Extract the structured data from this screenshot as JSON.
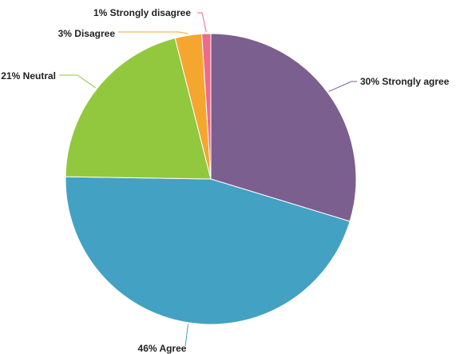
{
  "chart_data": {
    "type": "pie",
    "title": "",
    "slices": [
      {
        "name": "Strongly agree",
        "value": 30,
        "label": "30% Strongly agree",
        "color": "#7b5f8e"
      },
      {
        "name": "Agree",
        "value": 46,
        "label": "46% Agree",
        "color": "#43a1c3"
      },
      {
        "name": "Neutral",
        "value": 21,
        "label": "21% Neutral",
        "color": "#92c83e"
      },
      {
        "name": "Disagree",
        "value": 3,
        "label": "3% Disagree",
        "color": "#f5a62f"
      },
      {
        "name": "Strongly disagree",
        "value": 1,
        "label": "1% Strongly disagree",
        "color": "#ee6b8b"
      }
    ],
    "start_angle_deg": 0,
    "direction": "clockwise",
    "legend": "none",
    "labels_outside": true
  }
}
